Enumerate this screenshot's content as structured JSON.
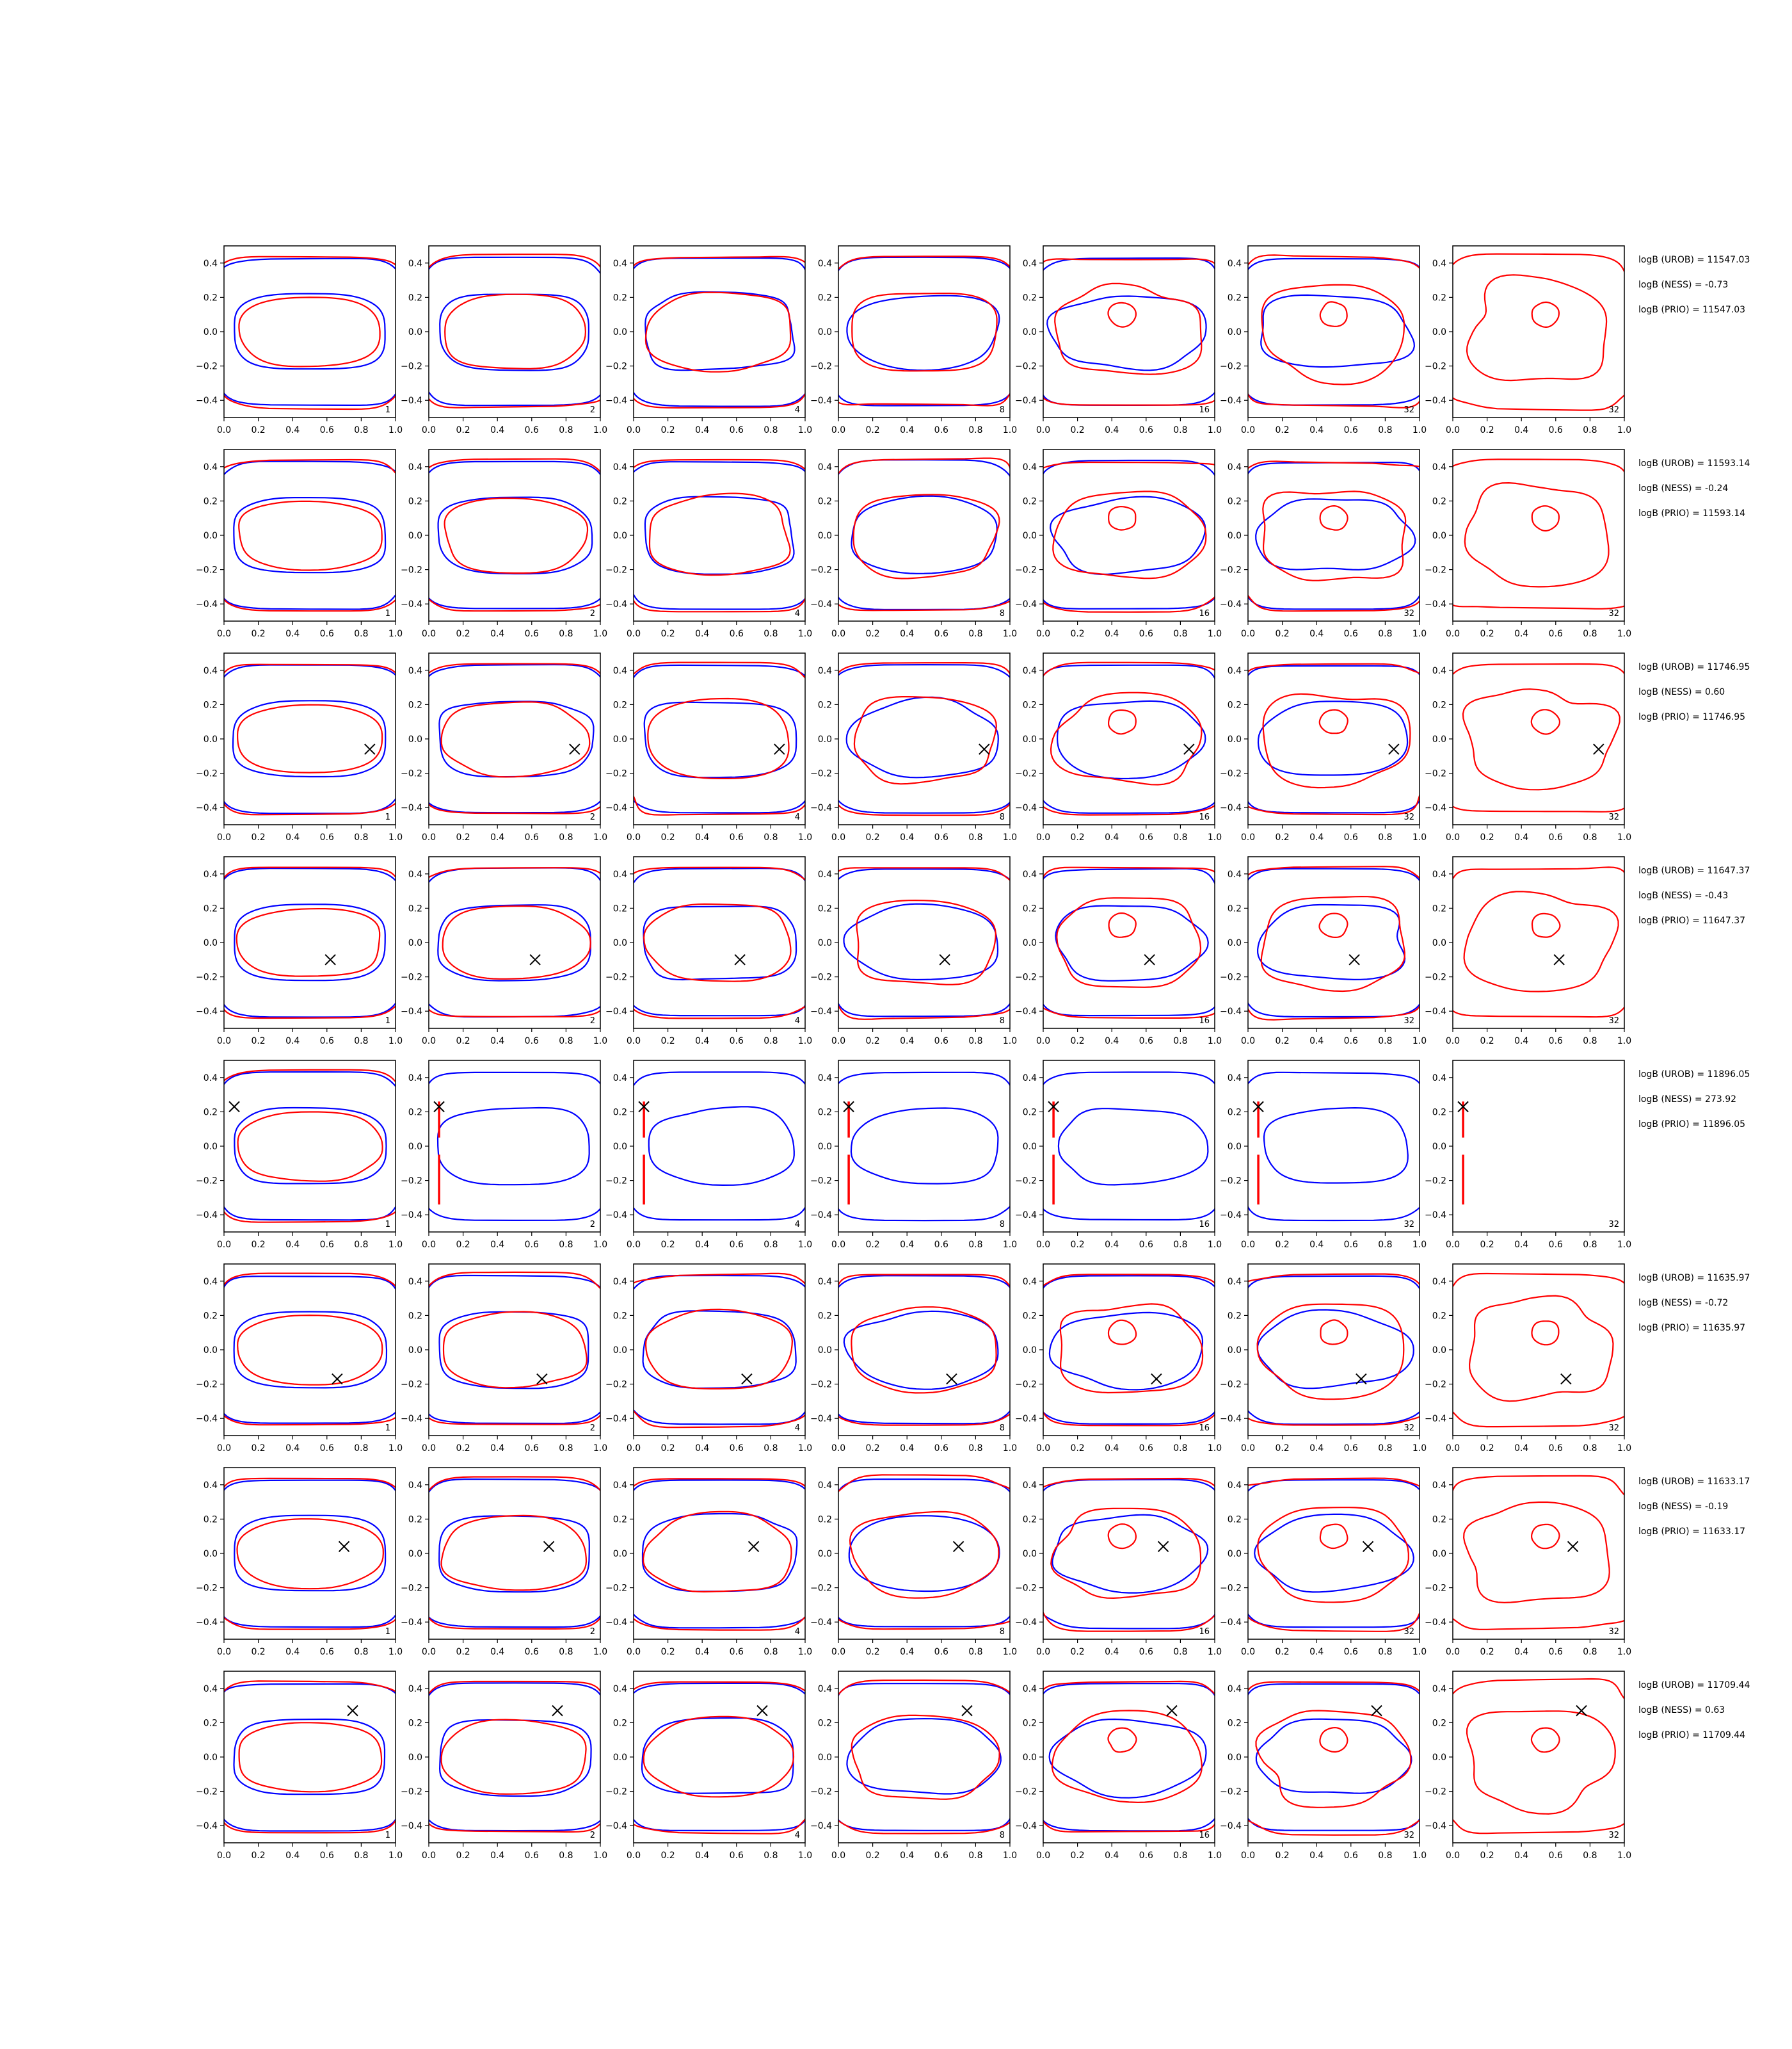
{
  "chart_data": {
    "type": "line",
    "subtype": "contour-grid",
    "title": "",
    "grid": false,
    "x_ticks": [
      "0.0",
      "0.2",
      "0.4",
      "0.6",
      "0.8",
      "1.0"
    ],
    "y_ticks": [
      "0.4",
      "0.2",
      "0.0",
      "−0.2",
      "−0.4"
    ],
    "xlim": [
      0,
      1
    ],
    "ylim": [
      -0.5,
      0.5
    ],
    "column_labels": [
      "1",
      "2",
      "4",
      "8",
      "16",
      "32",
      "32"
    ],
    "colors": {
      "model_a": "#0000ff",
      "model_b": "#ff0000",
      "marker": "#000000"
    },
    "rows": [
      {
        "marker": null,
        "notes": [
          "logB (UROB) = 11547.03",
          "logB (NESS) = -0.73",
          "logB (PRIO) = 11547.03"
        ]
      },
      {
        "marker": null,
        "notes": [
          "logB (UROB) = 11593.14",
          "logB (NESS) = -0.24",
          "logB (PRIO) = 11593.14"
        ]
      },
      {
        "marker": [
          0.85,
          -0.06
        ],
        "notes": [
          "logB (UROB) = 11746.95",
          "logB (NESS) = 0.60",
          "logB (PRIO) = 11746.95"
        ]
      },
      {
        "marker": [
          0.62,
          -0.1
        ],
        "notes": [
          "logB (UROB) = 11647.37",
          "logB (NESS) = -0.43",
          "logB (PRIO) = 11647.37"
        ]
      },
      {
        "marker": [
          0.06,
          0.23
        ],
        "notes": [
          "logB (UROB) = 11896.05",
          "logB (NESS) = 273.92",
          "logB (PRIO) = 11896.05"
        ]
      },
      {
        "marker": [
          0.66,
          -0.17
        ],
        "notes": [
          "logB (UROB) = 11635.97",
          "logB (NESS) = -0.72",
          "logB (PRIO) = 11635.97"
        ]
      },
      {
        "marker": [
          0.7,
          0.04
        ],
        "notes": [
          "logB (UROB) = 11633.17",
          "logB (NESS) = -0.19",
          "logB (PRIO) = 11633.17"
        ]
      },
      {
        "marker": [
          0.75,
          0.27
        ],
        "notes": [
          "logB (UROB) = 11709.44",
          "logB (NESS) = 0.63",
          "logB (PRIO) = 11709.44"
        ]
      }
    ]
  }
}
